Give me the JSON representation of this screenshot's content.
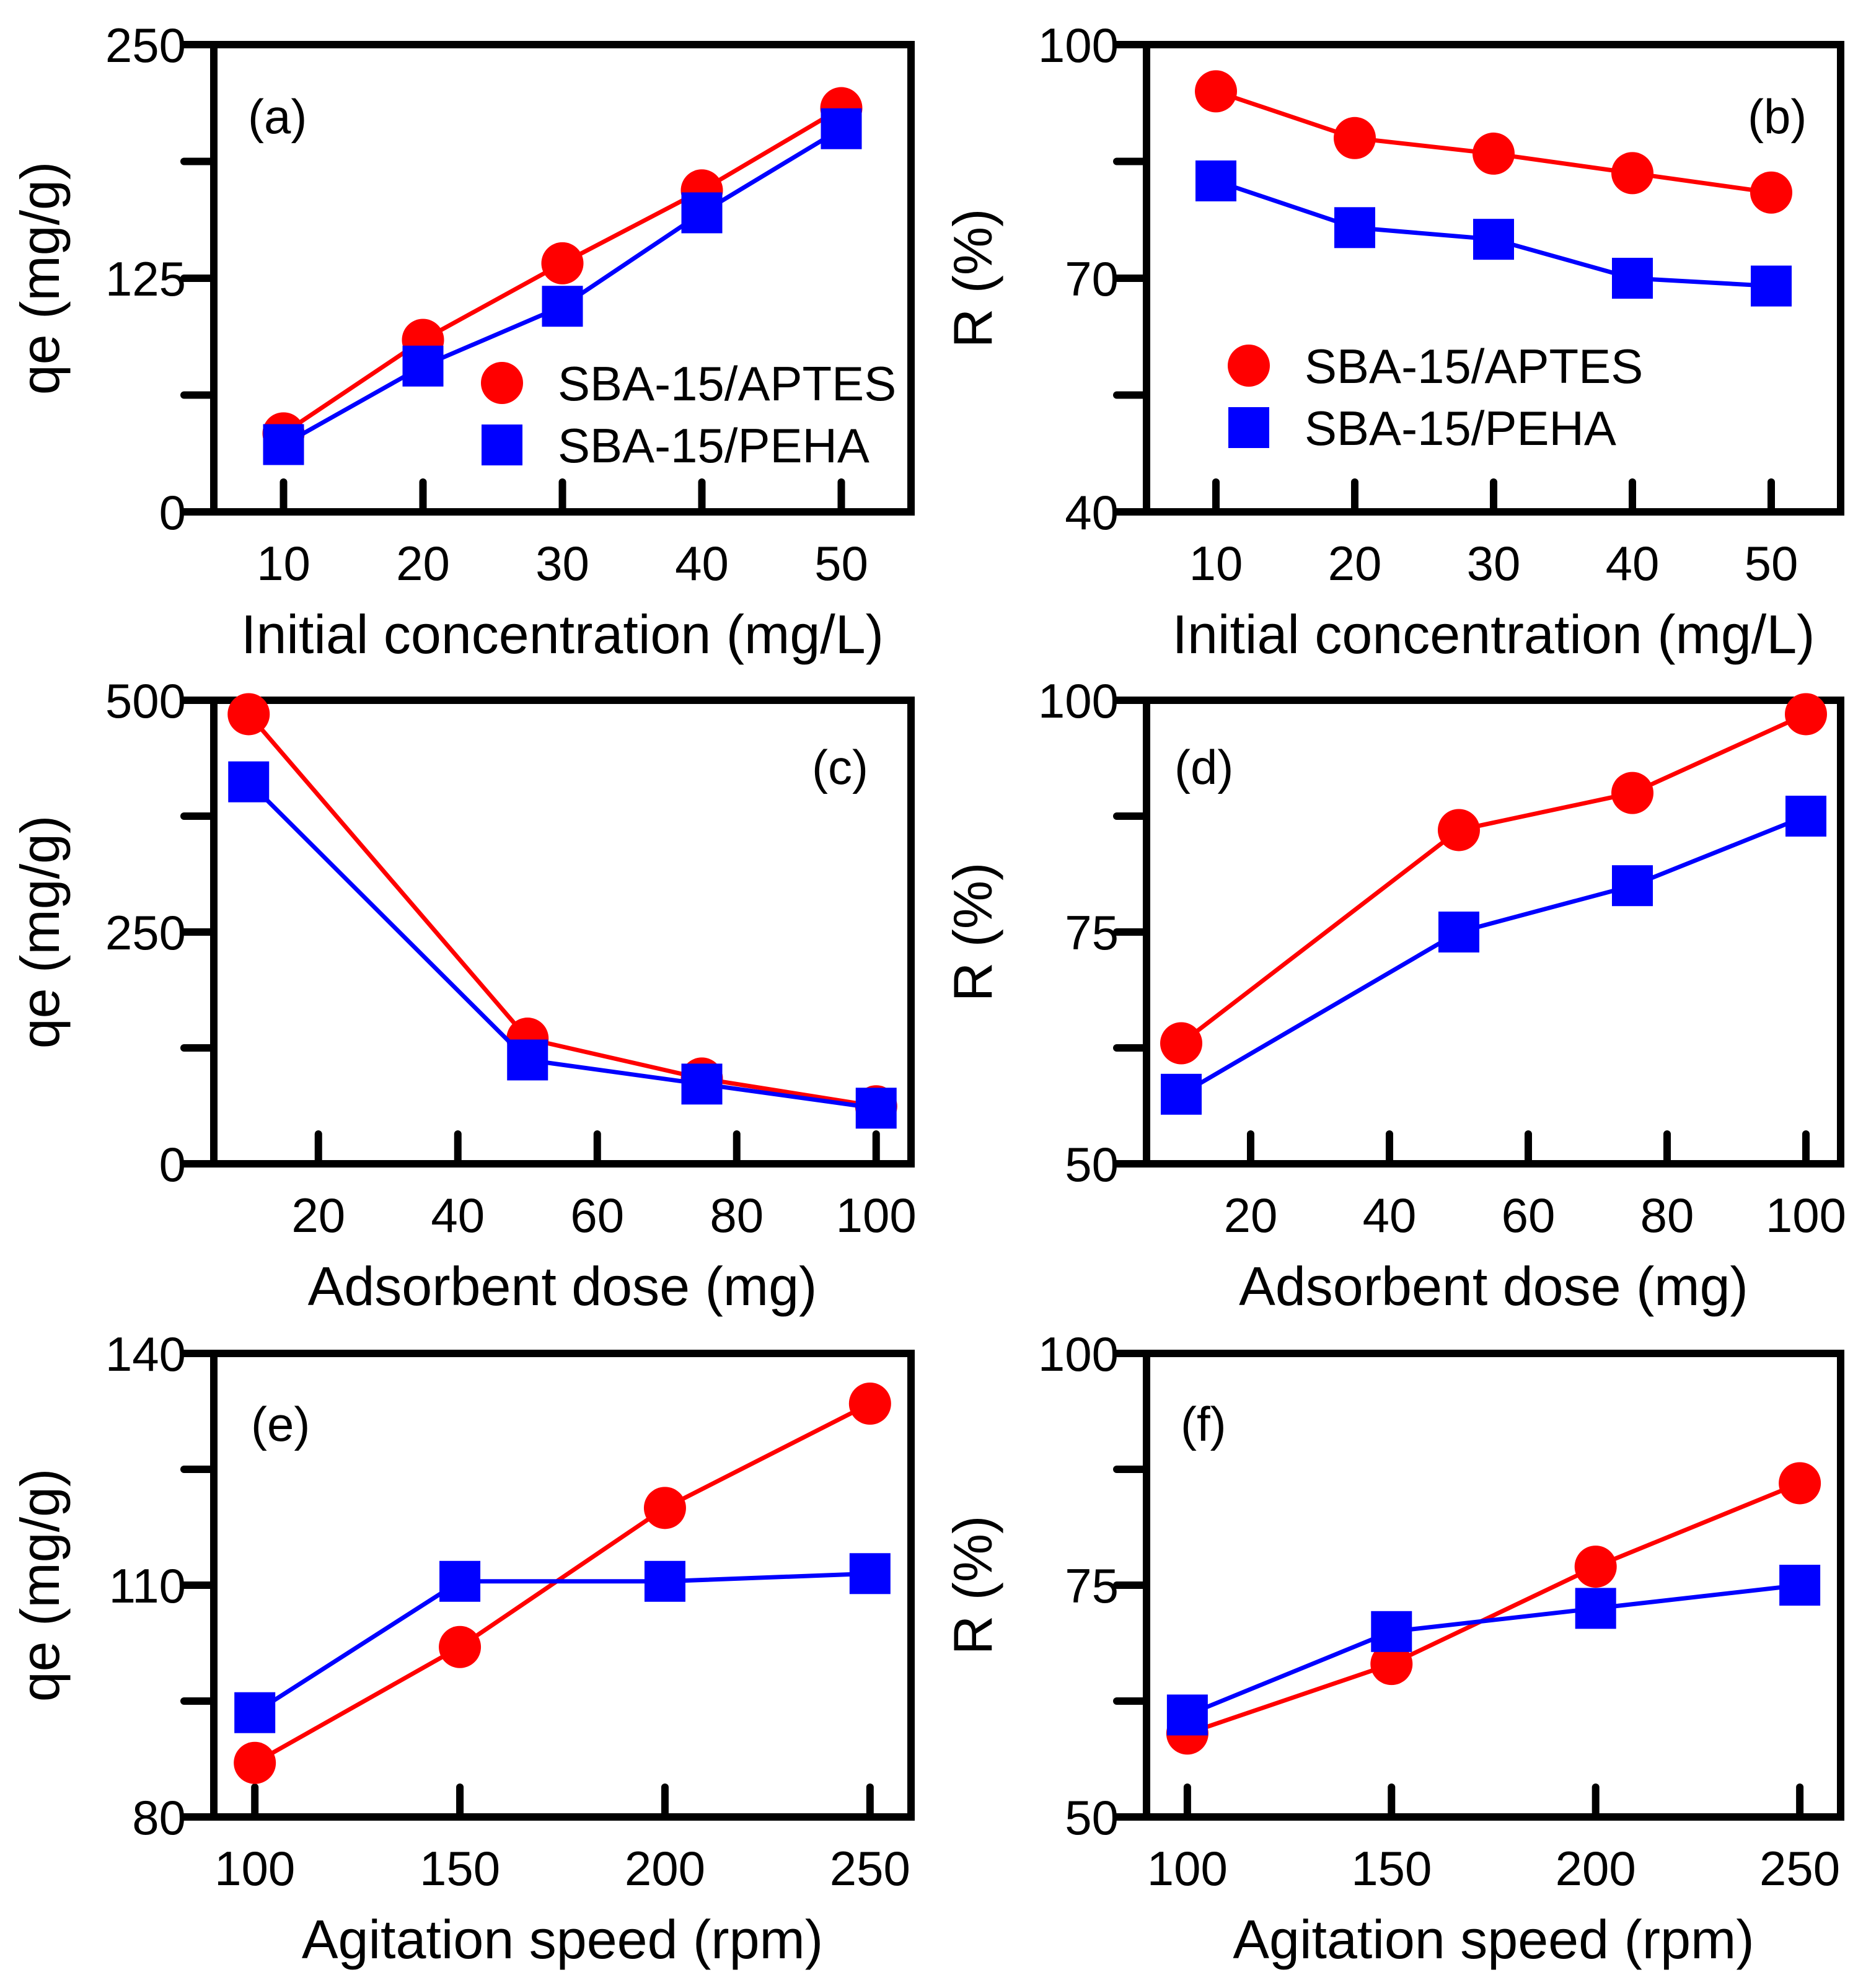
{
  "figure": {
    "series_names": [
      "SBA-15/APTES",
      "SBA-15/PEHA"
    ],
    "colors": {
      "aptes": "#ff0000",
      "peha": "#0000ff",
      "axis": "#000000"
    }
  },
  "chart_data": [
    {
      "id": "a",
      "type": "line",
      "panel_label": "(a)",
      "xlabel": "Initial concentration (mg/L)",
      "ylabel": "qe (mg/g)",
      "xlim": [
        5,
        55
      ],
      "ylim": [
        0,
        250
      ],
      "xticks": [
        10,
        20,
        30,
        40,
        50
      ],
      "yticks": [
        0,
        125,
        250
      ],
      "yminor": [
        62.5,
        187.5
      ],
      "x": [
        10,
        20,
        30,
        40,
        50
      ],
      "series": [
        {
          "name": "SBA-15/APTES",
          "marker": "circle",
          "values": [
            42,
            92,
            133,
            172,
            216
          ]
        },
        {
          "name": "SBA-15/PEHA",
          "marker": "square",
          "values": [
            36,
            78,
            110,
            160,
            205
          ]
        }
      ],
      "legend": "lower-right"
    },
    {
      "id": "b",
      "type": "line",
      "panel_label": "(b)",
      "xlabel": "Initial concentration (mg/L)",
      "ylabel": "R (%)",
      "xlim": [
        5,
        55
      ],
      "ylim": [
        40,
        100
      ],
      "xticks": [
        10,
        20,
        30,
        40,
        50
      ],
      "yticks": [
        40,
        70,
        100
      ],
      "yminor": [
        55,
        85
      ],
      "x": [
        10,
        20,
        30,
        40,
        50
      ],
      "series": [
        {
          "name": "SBA-15/APTES",
          "marker": "circle",
          "values": [
            94,
            88,
            86,
            83.5,
            81
          ]
        },
        {
          "name": "SBA-15/PEHA",
          "marker": "square",
          "values": [
            82.5,
            76.5,
            75,
            70,
            69
          ]
        }
      ],
      "legend": "lower-left"
    },
    {
      "id": "c",
      "type": "line",
      "panel_label": "(c)",
      "xlabel": "Adsorbent dose (mg)",
      "ylabel": "qe (mg/g)",
      "xlim": [
        5,
        105
      ],
      "ylim": [
        0,
        500
      ],
      "xticks": [
        20,
        40,
        60,
        80,
        100
      ],
      "yticks": [
        0,
        250,
        500
      ],
      "yminor": [
        125,
        375
      ],
      "x": [
        10,
        50,
        75,
        100
      ],
      "series": [
        {
          "name": "SBA-15/APTES",
          "marker": "circle",
          "values": [
            485,
            135,
            92,
            62
          ]
        },
        {
          "name": "SBA-15/PEHA",
          "marker": "square",
          "values": [
            412,
            112,
            86,
            60
          ]
        }
      ]
    },
    {
      "id": "d",
      "type": "line",
      "panel_label": "(d)",
      "xlabel": "Adsorbent dose (mg)",
      "ylabel": "R (%)",
      "xlim": [
        5,
        105
      ],
      "ylim": [
        50,
        100
      ],
      "xticks": [
        20,
        40,
        60,
        80,
        100
      ],
      "yticks": [
        50,
        75,
        100
      ],
      "yminor": [
        62.5,
        87.5
      ],
      "x": [
        10,
        50,
        75,
        100
      ],
      "series": [
        {
          "name": "SBA-15/APTES",
          "marker": "circle",
          "values": [
            63,
            86,
            90,
            98.5
          ]
        },
        {
          "name": "SBA-15/PEHA",
          "marker": "square",
          "values": [
            57.5,
            75,
            80,
            87.5
          ]
        }
      ]
    },
    {
      "id": "e",
      "type": "line",
      "panel_label": "(e)",
      "xlabel": "Agitation speed (rpm)",
      "ylabel": "qe (mg/g)",
      "xlim": [
        90,
        260
      ],
      "ylim": [
        80,
        140
      ],
      "xticks": [
        100,
        150,
        200,
        250
      ],
      "yticks": [
        80,
        110,
        140
      ],
      "yminor": [
        95,
        125
      ],
      "x": [
        100,
        150,
        200,
        250
      ],
      "series": [
        {
          "name": "SBA-15/APTES",
          "marker": "circle",
          "values": [
            87,
            102,
            120,
            133.5
          ]
        },
        {
          "name": "SBA-15/PEHA",
          "marker": "square",
          "values": [
            93.5,
            110.5,
            110.5,
            111.5
          ]
        }
      ]
    },
    {
      "id": "f",
      "type": "line",
      "panel_label": "(f)",
      "xlabel": "Agitation speed (rpm)",
      "ylabel": "R (%)",
      "xlim": [
        90,
        260
      ],
      "ylim": [
        50,
        100
      ],
      "xticks": [
        100,
        150,
        200,
        250
      ],
      "yticks": [
        50,
        75,
        100
      ],
      "yminor": [
        62.5,
        87.5
      ],
      "x": [
        100,
        150,
        200,
        250
      ],
      "series": [
        {
          "name": "SBA-15/APTES",
          "marker": "circle",
          "values": [
            59,
            66.5,
            77,
            86
          ]
        },
        {
          "name": "SBA-15/PEHA",
          "marker": "square",
          "values": [
            61,
            70,
            72.5,
            75
          ]
        }
      ]
    }
  ]
}
